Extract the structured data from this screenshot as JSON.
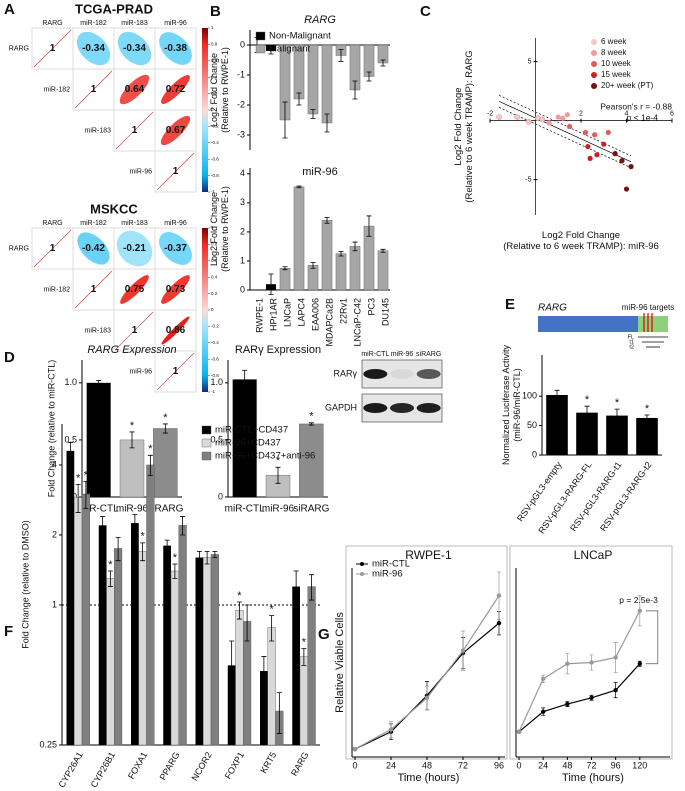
{
  "panels": [
    "A",
    "B",
    "C",
    "D",
    "E",
    "F",
    "G"
  ],
  "chart_data": [
    {
      "type": "corrplot",
      "title": "TCGA-PRAD",
      "labels": [
        "RARG",
        "miR-182",
        "miR-183",
        "miR-96"
      ],
      "values": [
        [
          1,
          -0.34,
          -0.34,
          -0.38
        ],
        [
          null,
          1,
          0.64,
          0.72
        ],
        [
          null,
          null,
          1,
          0.67
        ],
        [
          null,
          null,
          null,
          1
        ]
      ],
      "colorbar_ticks": [
        1,
        0.8,
        0.6,
        0.4,
        0.2,
        0,
        -0.2,
        -0.4,
        -0.6,
        -0.8,
        -1
      ]
    },
    {
      "type": "corrplot",
      "title": "MSKCC",
      "labels": [
        "RARG",
        "miR-182",
        "miR-183",
        "miR-96"
      ],
      "values": [
        [
          1,
          -0.42,
          -0.21,
          -0.37
        ],
        [
          null,
          1,
          0.75,
          0.73
        ],
        [
          null,
          null,
          1,
          0.86
        ],
        [
          null,
          null,
          null,
          1
        ]
      ],
      "colorbar_ticks": [
        1,
        0.8,
        0.6,
        0.4,
        0.2,
        0,
        -0.2,
        -0.4,
        -0.6,
        -0.8,
        -1
      ]
    },
    {
      "type": "bar",
      "title": "RARG",
      "ylabel": [
        "Log2 Fold Change",
        "(Relative to RWPE-1)"
      ],
      "series": [
        {
          "name": "Non-Malignant",
          "color": "#000000",
          "values": [
            0,
            -0.2,
            null,
            null,
            null,
            null,
            null,
            null,
            null,
            null
          ],
          "errors": [
            0.25,
            0.1,
            null,
            null,
            null,
            null,
            null,
            null,
            null,
            null
          ]
        },
        {
          "name": "Malignant",
          "color": "#a6a6a6",
          "values": [
            null,
            null,
            -2.5,
            -1.8,
            -2.3,
            -2.6,
            -0.35,
            -1.5,
            -1.05,
            -0.6
          ],
          "errors": [
            null,
            null,
            0.6,
            0.2,
            0.15,
            0.3,
            0.2,
            0.3,
            0.15,
            0.1
          ]
        }
      ],
      "ylim": [
        -3.5,
        0.5
      ],
      "yticks": [
        0,
        -1,
        -2,
        -3
      ],
      "legend": "upper left"
    },
    {
      "type": "bar",
      "title": "miR-96",
      "ylabel": [
        "Log2 Fold Change",
        "(Relative to RWPE-1)"
      ],
      "categories": [
        "RWPE-1",
        "HPr1AR",
        "LNCaP",
        "LAPC4",
        "EAA006",
        "MDAPCa2B",
        "22Rv1",
        "LNCaP-C42",
        "PC3",
        "DU145"
      ],
      "values": [
        0,
        0.2,
        0.75,
        3.55,
        0.85,
        2.4,
        1.25,
        1.5,
        2.2,
        1.35
      ],
      "errors": [
        0,
        0.35,
        0.05,
        0.03,
        0.1,
        0.1,
        0.08,
        0.15,
        0.35,
        0.05
      ],
      "colors": [
        "#000000",
        "#000000",
        "#a6a6a6",
        "#a6a6a6",
        "#a6a6a6",
        "#a6a6a6",
        "#a6a6a6",
        "#a6a6a6",
        "#a6a6a6",
        "#a6a6a6"
      ],
      "ylim": [
        0,
        4.2
      ],
      "yticks": [
        0,
        1,
        2,
        3,
        4
      ]
    },
    {
      "type": "scatter",
      "xlabel": [
        "Log2 Fold Change",
        "(Relative to 6 week TRAMP): miR-96"
      ],
      "ylabel": [
        "Log2 Fold Change",
        "(Relative to 6 week TRAMP): RARG"
      ],
      "series": [
        {
          "name": "6 week",
          "color": "#f6c9c9",
          "x": [
            -1.6,
            -0.8,
            0.1,
            0.3,
            -0.3
          ],
          "y": [
            0.3,
            0.3,
            0.2,
            0.1,
            -0.1
          ]
        },
        {
          "name": "8 week",
          "color": "#f09a9a",
          "x": [
            1.0,
            1.2,
            1.4,
            0.6
          ],
          "y": [
            0.3,
            0.2,
            0.5,
            -0.2
          ]
        },
        {
          "name": "10 week",
          "color": "#e55a5a",
          "x": [
            1.5,
            2.2,
            2.6,
            3.2
          ],
          "y": [
            -0.5,
            -1.0,
            -1.2,
            -1.0
          ]
        },
        {
          "name": "15 week",
          "color": "#cc2020",
          "x": [
            2.3,
            2.7,
            3.0,
            2.4
          ],
          "y": [
            -2.2,
            -2.9,
            -2.0,
            -3.2
          ]
        },
        {
          "name": "20+ week (PT)",
          "color": "#7a0f0f",
          "x": [
            3.5,
            3.8,
            4.2,
            4.0
          ],
          "y": [
            -2.8,
            -3.4,
            -3.9,
            -5.8
          ]
        }
      ],
      "xlim": [
        -2,
        6
      ],
      "ylim": [
        -8,
        7
      ],
      "xticks": [
        -2,
        2,
        4,
        6
      ],
      "yticks": [
        5,
        -5
      ],
      "annotations": [
        "Pearson's r = -0.88",
        "p < 1e-4"
      ],
      "fit_line": true,
      "legend": "upper right"
    },
    {
      "type": "bar",
      "title": "RARG Expression",
      "ylabel": "Fold Change (relative to miR-CTL)",
      "categories": [
        "miR-CTL",
        "miR-96",
        "siRARG"
      ],
      "values": [
        1.0,
        0.5,
        0.6
      ],
      "errors": [
        0.02,
        0.07,
        0.04
      ],
      "colors": [
        "#000000",
        "#bfbfbf",
        "#8c8c8c"
      ],
      "stars": [
        null,
        "*",
        "*"
      ],
      "ylim": [
        0,
        1.2
      ],
      "yticks": [
        0,
        0.5,
        {
          "value": 1,
          "label": "1.0"
        }
      ]
    },
    {
      "type": "bar",
      "title": "RARγ Expression",
      "categories": [
        "miR-CTL",
        "miR-96",
        "siRARG"
      ],
      "values": [
        1.03,
        0.19,
        0.64
      ],
      "errors": [
        0.08,
        0.07,
        0.01
      ],
      "colors": [
        "#000000",
        "#bfbfbf",
        "#8c8c8c"
      ],
      "stars": [
        null,
        "*",
        "*"
      ],
      "ylim": [
        0,
        1.2
      ],
      "yticks": [
        0,
        0.5,
        {
          "value": 1,
          "label": "1.0"
        }
      ]
    },
    {
      "type": "bar",
      "ylabel": [
        "Normalized Luciferase Activity",
        "(miR-96/miR-CTL)"
      ],
      "categories": [
        "RSV-pGL3-empty",
        "RSV-pGL3-RARG-FL",
        "RSV-pGL3-RARG-t1",
        "RSV-pGL3-RARG-t2"
      ],
      "values": [
        102,
        72,
        67,
        63
      ],
      "errors": [
        8,
        11,
        11,
        5
      ],
      "colors": [
        "#000000",
        "#000000",
        "#000000",
        "#000000"
      ],
      "stars": [
        null,
        "*",
        "*",
        "*"
      ],
      "ylim": [
        0,
        170
      ],
      "yticks": [
        0,
        50,
        100
      ]
    },
    {
      "type": "bar",
      "ylabel": "Fold Change (relative to DMSO)",
      "log_scale": true,
      "categories": [
        "CYP26A1",
        "CYP26B1",
        "FOXA1",
        "PPARG",
        "NCOR2",
        "FOXP1",
        "KRT5",
        "RARG"
      ],
      "series": [
        {
          "name": "miR-CTL+CD437",
          "color": "#000000",
          "values": [
            4.6,
            2.2,
            2.25,
            1.8,
            1.6,
            0.55,
            0.52,
            1.2
          ],
          "errors": [
            0.4,
            0.2,
            0.2,
            0.1,
            0.1,
            0.15,
            0.08,
            0.2
          ]
        },
        {
          "name": "miR-96+CD437",
          "color": "#d9d9d9",
          "values": [
            2.9,
            1.3,
            1.7,
            1.4,
            1.6,
            0.95,
            0.8,
            0.6
          ],
          "errors": [
            0.4,
            0.1,
            0.15,
            0.1,
            0.1,
            0.08,
            0.1,
            0.05
          ],
          "stars": [
            "*",
            "*",
            "*",
            "*",
            null,
            "*",
            "*",
            "*"
          ]
        },
        {
          "name": "miR-96+CD437+anti-96",
          "color": "#7f7f7f",
          "values": [
            3.0,
            1.75,
            4.0,
            2.2,
            1.65,
            0.85,
            0.35,
            1.2
          ],
          "errors": [
            0.4,
            0.2,
            0.4,
            0.2,
            0.05,
            0.15,
            0.07,
            0.15
          ],
          "stars": [
            "*",
            null,
            "*",
            null,
            null,
            null,
            null,
            null
          ]
        }
      ],
      "ylim": [
        0.25,
        6
      ],
      "yticks": [
        0.25,
        1,
        2,
        4
      ],
      "reference_line": 1,
      "legend": "upper right"
    },
    {
      "type": "line",
      "title": "RWPE-1",
      "ylabel": "Relative Viable Cells",
      "xlabel": "Time (hours)",
      "x": [
        0,
        24,
        48,
        72,
        96
      ],
      "xlim": [
        -2,
        100
      ],
      "xticks": [
        0,
        24,
        48,
        72,
        96
      ],
      "ylim": [
        0,
        24
      ],
      "series": [
        {
          "name": "miR-CTL",
          "color": "#000000",
          "values": [
            1,
            3.2,
            7.8,
            13.2,
            17
          ],
          "errors": [
            0.2,
            1,
            1.8,
            2,
            1.5
          ]
        },
        {
          "name": "miR-96",
          "color": "#999999",
          "values": [
            1,
            3.5,
            7.5,
            13.5,
            20.5
          ],
          "errors": [
            0.2,
            1,
            1.5,
            2.5,
            3
          ]
        }
      ],
      "legend": "upper left"
    },
    {
      "type": "line",
      "title": "LNCaP",
      "xlabel": "Time (hours)",
      "x": [
        0,
        24,
        48,
        72,
        96,
        120
      ],
      "xlim": [
        -3,
        150
      ],
      "xticks": [
        0,
        24,
        48,
        72,
        96,
        120
      ],
      "ylim": [
        0,
        7.5
      ],
      "series": [
        {
          "color": "#000000",
          "values": [
            1,
            1.8,
            2.1,
            2.35,
            2.65,
            3.7
          ],
          "errors": [
            0.05,
            0.15,
            0.1,
            0.1,
            0.3,
            0.1
          ]
        },
        {
          "color": "#999999",
          "values": [
            1,
            3.1,
            3.7,
            3.75,
            3.95,
            5.8
          ],
          "errors": [
            0.05,
            0.15,
            0.4,
            0.3,
            0.6,
            0.6
          ]
        }
      ],
      "annotation": "p = 2.5e-3"
    }
  ],
  "western_blot": {
    "lanes": [
      "miR-CTL",
      "miR-96",
      "siRARG"
    ],
    "rows": [
      "RARγ",
      "GAPDH"
    ]
  },
  "gene_diagram": {
    "gene": "RARG",
    "label": "miR-96 targets",
    "constructs": [
      "FL",
      "t1",
      "t2"
    ]
  }
}
